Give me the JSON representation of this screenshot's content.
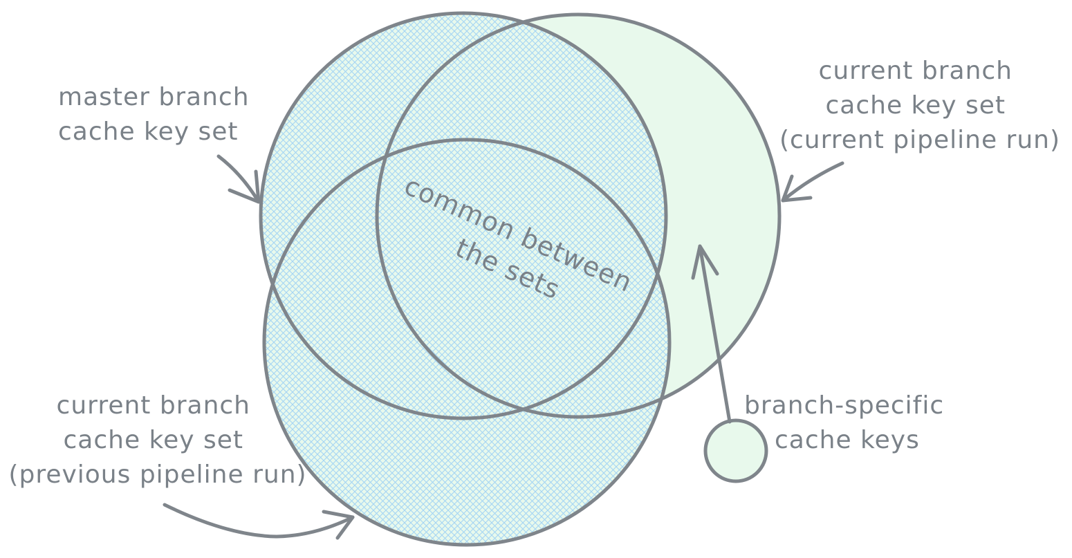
{
  "colors": {
    "stroke": "#7f858b",
    "text": "#7a8188",
    "fill_green": "#e8f9ec",
    "hatch_blue": "#a5d5f4"
  },
  "labels": {
    "master": [
      "master branch",
      "cache key set"
    ],
    "current": [
      "current branch",
      "cache key set",
      "(current pipeline run)"
    ],
    "previous": [
      "current branch",
      "cache key set",
      "(previous pipeline run)"
    ],
    "common": [
      "common between",
      "the sets"
    ],
    "branch_specific": [
      "branch-specific",
      "cache keys"
    ]
  }
}
